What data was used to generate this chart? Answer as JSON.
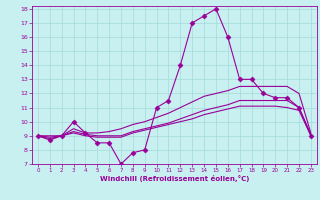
{
  "xlabel": "Windchill (Refroidissement éolien,°C)",
  "xlim": [
    -0.5,
    23.5
  ],
  "ylim": [
    7,
    18.2
  ],
  "yticks": [
    7,
    8,
    9,
    10,
    11,
    12,
    13,
    14,
    15,
    16,
    17,
    18
  ],
  "xticks": [
    0,
    1,
    2,
    3,
    4,
    5,
    6,
    7,
    8,
    9,
    10,
    11,
    12,
    13,
    14,
    15,
    16,
    17,
    18,
    19,
    20,
    21,
    22,
    23
  ],
  "bg_color": "#c8f0f0",
  "line_color": "#990099",
  "grid_color": "#aadddd",
  "series": [
    {
      "x": [
        0,
        1,
        2,
        3,
        4,
        5,
        6,
        7,
        8,
        9,
        10,
        11,
        12,
        13,
        14,
        15,
        16,
        17,
        18,
        19,
        20,
        21,
        22,
        23
      ],
      "y": [
        9,
        8.7,
        9,
        10,
        9.2,
        8.5,
        8.5,
        7,
        7.8,
        8,
        11,
        11.5,
        14,
        17,
        17.5,
        18,
        16,
        13,
        13,
        12,
        11.7,
        11.7,
        11,
        9
      ],
      "marker": "D",
      "markersize": 2.5
    },
    {
      "x": [
        0,
        1,
        2,
        3,
        4,
        5,
        6,
        7,
        8,
        9,
        10,
        11,
        12,
        13,
        14,
        15,
        16,
        17,
        18,
        19,
        20,
        21,
        22,
        23
      ],
      "y": [
        9,
        9,
        9,
        9.5,
        9.2,
        9.2,
        9.3,
        9.5,
        9.8,
        10,
        10.3,
        10.6,
        11,
        11.4,
        11.8,
        12,
        12.2,
        12.5,
        12.5,
        12.5,
        12.5,
        12.5,
        12,
        9.2
      ],
      "marker": null,
      "markersize": 0
    },
    {
      "x": [
        0,
        1,
        2,
        3,
        4,
        5,
        6,
        7,
        8,
        9,
        10,
        11,
        12,
        13,
        14,
        15,
        16,
        17,
        18,
        19,
        20,
        21,
        22,
        23
      ],
      "y": [
        9,
        8.9,
        9,
        9.3,
        9.1,
        9,
        9,
        9,
        9.3,
        9.5,
        9.7,
        9.9,
        10.2,
        10.5,
        10.8,
        11,
        11.2,
        11.5,
        11.5,
        11.5,
        11.5,
        11.5,
        11,
        9.1
      ],
      "marker": null,
      "markersize": 0
    },
    {
      "x": [
        0,
        1,
        2,
        3,
        4,
        5,
        6,
        7,
        8,
        9,
        10,
        11,
        12,
        13,
        14,
        15,
        16,
        17,
        18,
        19,
        20,
        21,
        22,
        23
      ],
      "y": [
        9,
        8.8,
        9,
        9.2,
        9,
        8.9,
        8.9,
        8.9,
        9.2,
        9.4,
        9.6,
        9.8,
        10.0,
        10.2,
        10.5,
        10.7,
        10.9,
        11.1,
        11.1,
        11.1,
        11.1,
        11.0,
        10.8,
        9.0
      ],
      "marker": null,
      "markersize": 0
    }
  ]
}
